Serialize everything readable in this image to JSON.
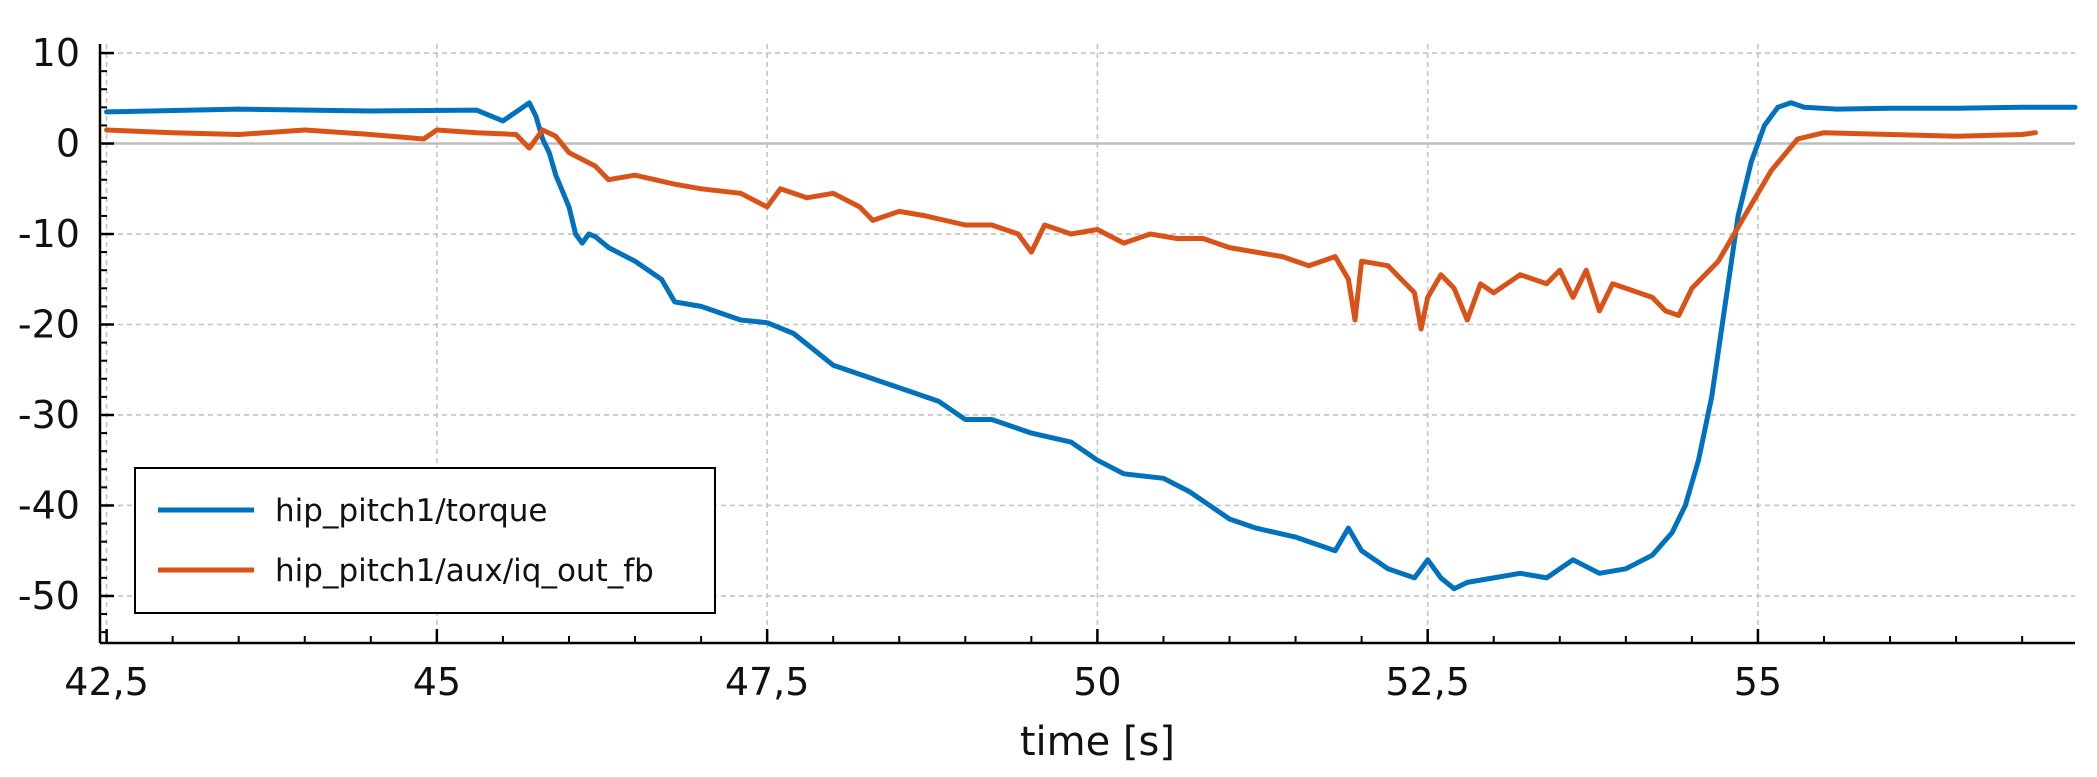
{
  "chart_data": {
    "type": "line",
    "title": "",
    "xlabel": "time [s]",
    "ylabel": "",
    "xlim": [
      42.45,
      57.4
    ],
    "ylim": [
      -55.2,
      11.0
    ],
    "x_ticks": [
      42.5,
      45,
      47.5,
      50,
      52.5,
      55
    ],
    "x_tick_labels": [
      "42,5",
      "45",
      "47,5",
      "50",
      "52,5",
      "55"
    ],
    "y_ticks": [
      10,
      0,
      -10,
      -20,
      -30,
      -40,
      -50
    ],
    "y_tick_labels": [
      "10",
      "0",
      "-10",
      "-20",
      "-30",
      "-40",
      "-50"
    ],
    "grid": true,
    "legend_position": "bottom-left",
    "series": [
      {
        "name": "hip_pitch1/torque",
        "color": "#0072BD",
        "x": [
          42.5,
          43.5,
          44.5,
          45.3,
          45.5,
          45.6,
          45.7,
          45.75,
          45.8,
          45.85,
          45.9,
          46.0,
          46.05,
          46.1,
          46.15,
          46.2,
          46.3,
          46.5,
          46.7,
          46.8,
          47.0,
          47.3,
          47.5,
          47.7,
          48.0,
          48.2,
          48.5,
          48.8,
          49.0,
          49.2,
          49.5,
          49.8,
          50.0,
          50.2,
          50.5,
          50.7,
          51.0,
          51.2,
          51.5,
          51.8,
          51.9,
          52.0,
          52.2,
          52.4,
          52.5,
          52.6,
          52.7,
          52.8,
          53.0,
          53.2,
          53.4,
          53.5,
          53.6,
          53.8,
          54.0,
          54.2,
          54.35,
          54.45,
          54.55,
          54.65,
          54.75,
          54.85,
          54.95,
          55.05,
          55.15,
          55.25,
          55.35,
          55.6,
          56.0,
          56.5,
          57.0,
          57.4
        ],
        "y": [
          3.5,
          3.8,
          3.6,
          3.7,
          2.5,
          3.5,
          4.5,
          3.0,
          0.5,
          -1.0,
          -3.5,
          -7.0,
          -10.0,
          -11.0,
          -10.0,
          -10.3,
          -11.5,
          -13.0,
          -15.0,
          -17.5,
          -18.0,
          -19.5,
          -19.8,
          -21.0,
          -24.5,
          -25.5,
          -27.0,
          -28.5,
          -30.5,
          -30.5,
          -32.0,
          -33.0,
          -35.0,
          -36.5,
          -37.0,
          -38.5,
          -41.5,
          -42.5,
          -43.5,
          -45.0,
          -42.5,
          -45.0,
          -47.0,
          -48.0,
          -46.0,
          -48.0,
          -49.2,
          -48.5,
          -48.0,
          -47.5,
          -48.0,
          -47.0,
          -46.0,
          -47.5,
          -47.0,
          -45.5,
          -43.0,
          -40.0,
          -35.0,
          -28.0,
          -18.0,
          -8.0,
          -2.0,
          2.0,
          4.0,
          4.5,
          4.0,
          3.8,
          3.9,
          3.9,
          4.0,
          4.0
        ]
      },
      {
        "name": "hip_pitch1/aux/iq_out_fb",
        "color": "#D95319",
        "x": [
          42.5,
          43.0,
          43.5,
          44.0,
          44.5,
          44.9,
          45.0,
          45.3,
          45.6,
          45.7,
          45.8,
          45.9,
          46.0,
          46.2,
          46.3,
          46.5,
          46.8,
          47.0,
          47.3,
          47.5,
          47.6,
          47.8,
          48.0,
          48.2,
          48.3,
          48.5,
          48.7,
          49.0,
          49.2,
          49.4,
          49.5,
          49.6,
          49.8,
          50.0,
          50.2,
          50.4,
          50.6,
          50.8,
          51.0,
          51.2,
          51.4,
          51.6,
          51.8,
          51.9,
          51.95,
          52.0,
          52.2,
          52.4,
          52.45,
          52.5,
          52.6,
          52.7,
          52.8,
          52.9,
          53.0,
          53.2,
          53.4,
          53.5,
          53.6,
          53.7,
          53.8,
          53.9,
          54.0,
          54.2,
          54.3,
          54.4,
          54.5,
          54.7,
          54.9,
          55.1,
          55.3,
          55.5,
          56.0,
          56.5,
          57.0,
          57.1
        ],
        "y": [
          1.5,
          1.2,
          1.0,
          1.5,
          1.0,
          0.5,
          1.5,
          1.2,
          1.0,
          -0.5,
          1.5,
          0.8,
          -1.0,
          -2.5,
          -4.0,
          -3.5,
          -4.5,
          -5.0,
          -5.5,
          -7.0,
          -5.0,
          -6.0,
          -5.5,
          -7.0,
          -8.5,
          -7.5,
          -8.0,
          -9.0,
          -9.0,
          -10.0,
          -12.0,
          -9.0,
          -10.0,
          -9.5,
          -11.0,
          -10.0,
          -10.5,
          -10.5,
          -11.5,
          -12.0,
          -12.5,
          -13.5,
          -12.5,
          -15.0,
          -19.5,
          -13.0,
          -13.5,
          -16.5,
          -20.5,
          -17.0,
          -14.5,
          -16.0,
          -19.5,
          -15.5,
          -16.5,
          -14.5,
          -15.5,
          -14.0,
          -17.0,
          -14.0,
          -18.5,
          -15.5,
          -16.0,
          -17.0,
          -18.5,
          -19.0,
          -16.0,
          -13.0,
          -8.0,
          -3.0,
          0.5,
          1.2,
          1.0,
          0.8,
          1.0,
          1.2
        ]
      }
    ]
  }
}
